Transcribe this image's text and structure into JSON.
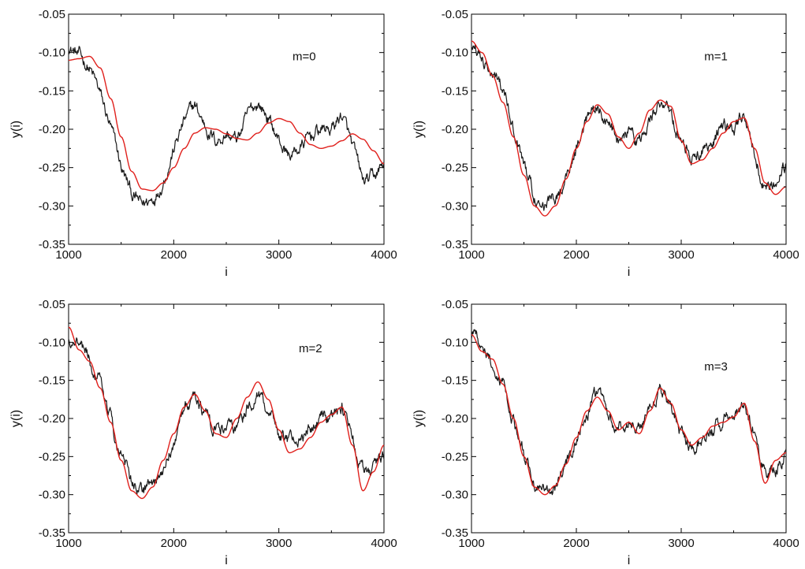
{
  "colors": {
    "data_series": "#1a1a1a",
    "fit_series": "#e0201c",
    "axes": "#000000",
    "background": "#ffffff"
  },
  "chart_data": [
    {
      "type": "line",
      "label": "m=0",
      "xlabel": "i",
      "ylabel": "y(i)",
      "xlim": [
        1000,
        4000
      ],
      "ylim": [
        -0.35,
        -0.05
      ],
      "xticks": [
        1000,
        2000,
        3000,
        4000
      ],
      "yticks": [
        -0.05,
        -0.1,
        -0.15,
        -0.2,
        -0.25,
        -0.3,
        -0.35
      ],
      "xtick_labels": [
        "1000",
        "2000",
        "3000",
        "4000"
      ],
      "ytick_labels": [
        "-0.05",
        "-0.10",
        "-0.15",
        "-0.20",
        "-0.25",
        "-0.30",
        "-0.35"
      ],
      "grid": false,
      "series": [
        {
          "color": "#1a1a1a",
          "x": [
            1000,
            1100,
            1200,
            1300,
            1400,
            1500,
            1600,
            1700,
            1800,
            1900,
            2000,
            2100,
            2200,
            2300,
            2400,
            2500,
            2600,
            2700,
            2800,
            2900,
            3000,
            3100,
            3200,
            3300,
            3400,
            3500,
            3600,
            3700,
            3800,
            3900,
            4000
          ],
          "y": [
            -0.09,
            -0.105,
            -0.12,
            -0.155,
            -0.2,
            -0.25,
            -0.285,
            -0.3,
            -0.29,
            -0.265,
            -0.225,
            -0.19,
            -0.17,
            -0.195,
            -0.215,
            -0.205,
            -0.215,
            -0.185,
            -0.165,
            -0.185,
            -0.215,
            -0.235,
            -0.225,
            -0.21,
            -0.2,
            -0.2,
            -0.18,
            -0.225,
            -0.27,
            -0.265,
            -0.245
          ]
        },
        {
          "color": "#e0201c",
          "x": [
            1000,
            1100,
            1200,
            1300,
            1400,
            1500,
            1600,
            1700,
            1800,
            1900,
            2000,
            2100,
            2200,
            2300,
            2400,
            2500,
            2600,
            2700,
            2800,
            2900,
            3000,
            3100,
            3200,
            3300,
            3400,
            3500,
            3600,
            3700,
            3800,
            3900,
            4000
          ],
          "y": [
            -0.11,
            -0.108,
            -0.105,
            -0.12,
            -0.16,
            -0.21,
            -0.255,
            -0.278,
            -0.28,
            -0.27,
            -0.25,
            -0.225,
            -0.205,
            -0.198,
            -0.2,
            -0.206,
            -0.212,
            -0.214,
            -0.205,
            -0.192,
            -0.186,
            -0.19,
            -0.205,
            -0.22,
            -0.225,
            -0.222,
            -0.215,
            -0.206,
            -0.213,
            -0.228,
            -0.245
          ]
        }
      ]
    },
    {
      "type": "line",
      "label": "m=1",
      "xlabel": "i",
      "ylabel": "y(i)",
      "xlim": [
        1000,
        4000
      ],
      "ylim": [
        -0.35,
        -0.05
      ],
      "xticks": [
        1000,
        2000,
        3000,
        4000
      ],
      "yticks": [
        -0.05,
        -0.1,
        -0.15,
        -0.2,
        -0.25,
        -0.3,
        -0.35
      ],
      "xtick_labels": [
        "1000",
        "2000",
        "3000",
        "4000"
      ],
      "ytick_labels": [
        "-0.05",
        "-0.10",
        "-0.15",
        "-0.20",
        "-0.25",
        "-0.30",
        "-0.35"
      ],
      "grid": false,
      "series": [
        {
          "color": "#1a1a1a",
          "x": [
            1000,
            1100,
            1200,
            1300,
            1400,
            1500,
            1600,
            1700,
            1800,
            1900,
            2000,
            2100,
            2200,
            2300,
            2400,
            2500,
            2600,
            2700,
            2800,
            2900,
            3000,
            3100,
            3200,
            3300,
            3400,
            3500,
            3600,
            3700,
            3800,
            3900,
            4000
          ],
          "y": [
            -0.09,
            -0.105,
            -0.12,
            -0.155,
            -0.2,
            -0.25,
            -0.285,
            -0.3,
            -0.29,
            -0.265,
            -0.225,
            -0.19,
            -0.17,
            -0.195,
            -0.215,
            -0.205,
            -0.215,
            -0.185,
            -0.165,
            -0.185,
            -0.215,
            -0.235,
            -0.225,
            -0.21,
            -0.2,
            -0.2,
            -0.18,
            -0.225,
            -0.27,
            -0.265,
            -0.245
          ]
        },
        {
          "color": "#e0201c",
          "x": [
            1000,
            1100,
            1200,
            1300,
            1400,
            1500,
            1600,
            1700,
            1800,
            1900,
            2000,
            2100,
            2200,
            2300,
            2400,
            2500,
            2600,
            2700,
            2800,
            2900,
            3000,
            3100,
            3200,
            3300,
            3400,
            3500,
            3600,
            3700,
            3800,
            3900,
            4000
          ],
          "y": [
            -0.085,
            -0.1,
            -0.13,
            -0.165,
            -0.21,
            -0.26,
            -0.3,
            -0.313,
            -0.3,
            -0.265,
            -0.225,
            -0.19,
            -0.168,
            -0.18,
            -0.21,
            -0.225,
            -0.205,
            -0.175,
            -0.162,
            -0.17,
            -0.215,
            -0.245,
            -0.24,
            -0.225,
            -0.205,
            -0.19,
            -0.185,
            -0.225,
            -0.27,
            -0.285,
            -0.275
          ]
        }
      ]
    },
    {
      "type": "line",
      "label": "m=2",
      "xlabel": "i",
      "ylabel": "y(i)",
      "xlim": [
        1000,
        4000
      ],
      "ylim": [
        -0.35,
        -0.05
      ],
      "xticks": [
        1000,
        2000,
        3000,
        4000
      ],
      "yticks": [
        -0.05,
        -0.1,
        -0.15,
        -0.2,
        -0.25,
        -0.3,
        -0.35
      ],
      "xtick_labels": [
        "1000",
        "2000",
        "3000",
        "4000"
      ],
      "ytick_labels": [
        "-0.05",
        "-0.10",
        "-0.15",
        "-0.20",
        "-0.25",
        "-0.30",
        "-0.35"
      ],
      "grid": false,
      "series": [
        {
          "color": "#1a1a1a",
          "x": [
            1000,
            1100,
            1200,
            1300,
            1400,
            1500,
            1600,
            1700,
            1800,
            1900,
            2000,
            2100,
            2200,
            2300,
            2400,
            2500,
            2600,
            2700,
            2800,
            2900,
            3000,
            3100,
            3200,
            3300,
            3400,
            3500,
            3600,
            3700,
            3800,
            3900,
            4000
          ],
          "y": [
            -0.09,
            -0.105,
            -0.12,
            -0.155,
            -0.2,
            -0.25,
            -0.285,
            -0.3,
            -0.29,
            -0.265,
            -0.225,
            -0.19,
            -0.17,
            -0.195,
            -0.215,
            -0.205,
            -0.215,
            -0.185,
            -0.165,
            -0.185,
            -0.215,
            -0.235,
            -0.225,
            -0.21,
            -0.2,
            -0.2,
            -0.18,
            -0.225,
            -0.27,
            -0.265,
            -0.245
          ]
        },
        {
          "color": "#e0201c",
          "x": [
            1000,
            1100,
            1200,
            1300,
            1400,
            1500,
            1600,
            1700,
            1800,
            1900,
            2000,
            2100,
            2200,
            2300,
            2400,
            2500,
            2600,
            2700,
            2800,
            2900,
            3000,
            3100,
            3200,
            3300,
            3400,
            3500,
            3600,
            3700,
            3800,
            3900,
            4000
          ],
          "y": [
            -0.08,
            -0.11,
            -0.125,
            -0.16,
            -0.205,
            -0.255,
            -0.295,
            -0.305,
            -0.29,
            -0.255,
            -0.22,
            -0.185,
            -0.168,
            -0.19,
            -0.22,
            -0.225,
            -0.2,
            -0.172,
            -0.152,
            -0.175,
            -0.215,
            -0.245,
            -0.24,
            -0.225,
            -0.205,
            -0.195,
            -0.185,
            -0.235,
            -0.295,
            -0.27,
            -0.235
          ]
        }
      ]
    },
    {
      "type": "line",
      "label": "m=3",
      "xlabel": "i",
      "ylabel": "y(i)",
      "xlim": [
        1000,
        4000
      ],
      "ylim": [
        -0.35,
        -0.05
      ],
      "xticks": [
        1000,
        2000,
        3000,
        4000
      ],
      "yticks": [
        -0.05,
        -0.1,
        -0.15,
        -0.2,
        -0.25,
        -0.3,
        -0.35
      ],
      "xtick_labels": [
        "1000",
        "2000",
        "3000",
        "4000"
      ],
      "ytick_labels": [
        "-0.05",
        "-0.10",
        "-0.15",
        "-0.20",
        "-0.25",
        "-0.30",
        "-0.35"
      ],
      "grid": false,
      "series": [
        {
          "color": "#1a1a1a",
          "x": [
            1000,
            1100,
            1200,
            1300,
            1400,
            1500,
            1600,
            1700,
            1800,
            1900,
            2000,
            2100,
            2200,
            2300,
            2400,
            2500,
            2600,
            2700,
            2800,
            2900,
            3000,
            3100,
            3200,
            3300,
            3400,
            3500,
            3600,
            3700,
            3800,
            3900,
            4000
          ],
          "y": [
            -0.09,
            -0.105,
            -0.12,
            -0.155,
            -0.2,
            -0.25,
            -0.285,
            -0.3,
            -0.29,
            -0.265,
            -0.225,
            -0.19,
            -0.17,
            -0.195,
            -0.215,
            -0.205,
            -0.215,
            -0.185,
            -0.165,
            -0.185,
            -0.215,
            -0.235,
            -0.225,
            -0.21,
            -0.2,
            -0.2,
            -0.18,
            -0.225,
            -0.27,
            -0.265,
            -0.245
          ]
        },
        {
          "color": "#e0201c",
          "x": [
            1000,
            1100,
            1200,
            1300,
            1400,
            1500,
            1600,
            1700,
            1800,
            1900,
            2000,
            2100,
            2200,
            2300,
            2400,
            2500,
            2600,
            2700,
            2800,
            2900,
            3000,
            3100,
            3200,
            3300,
            3400,
            3500,
            3600,
            3700,
            3800,
            3900,
            4000
          ],
          "y": [
            -0.09,
            -0.112,
            -0.122,
            -0.155,
            -0.2,
            -0.25,
            -0.29,
            -0.3,
            -0.288,
            -0.26,
            -0.225,
            -0.19,
            -0.172,
            -0.19,
            -0.215,
            -0.205,
            -0.22,
            -0.19,
            -0.16,
            -0.18,
            -0.215,
            -0.235,
            -0.225,
            -0.21,
            -0.205,
            -0.198,
            -0.18,
            -0.23,
            -0.285,
            -0.255,
            -0.245
          ]
        }
      ]
    }
  ]
}
